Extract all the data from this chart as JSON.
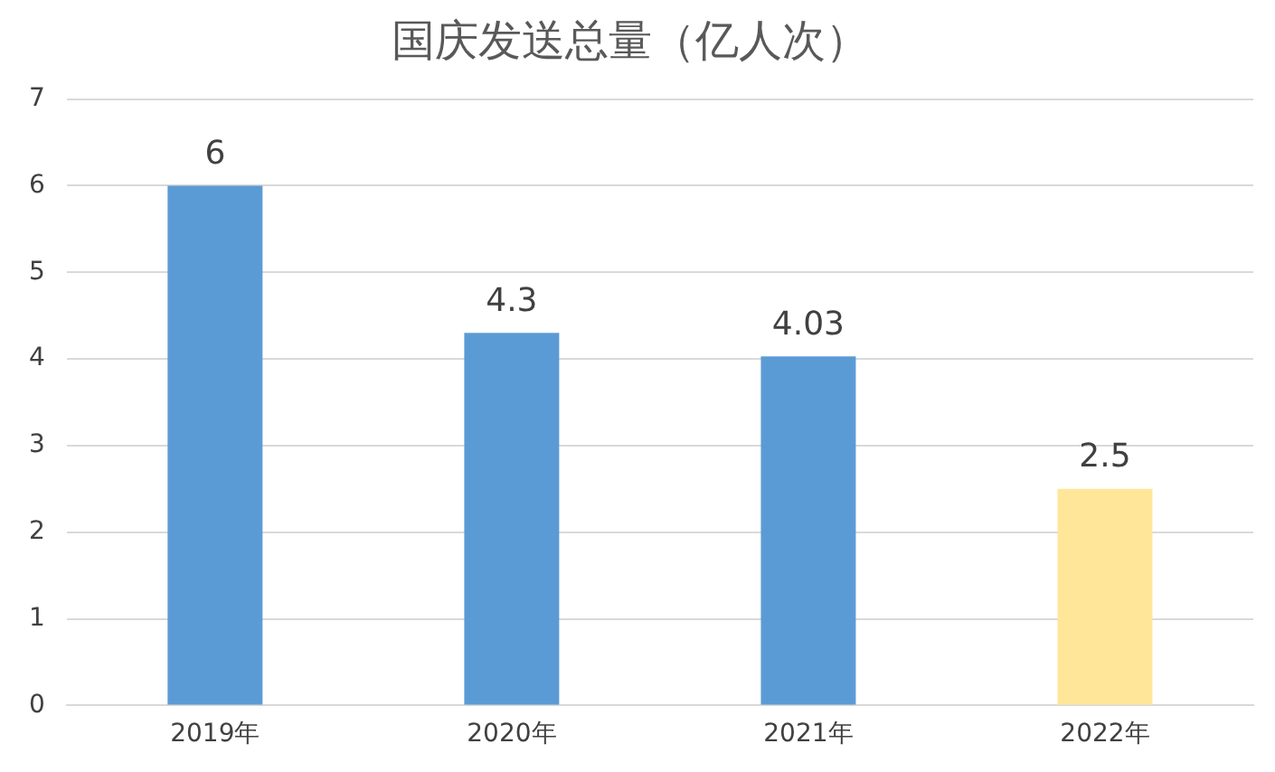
{
  "chart_data": {
    "type": "bar",
    "title": "国庆发送总量（亿人次）",
    "categories": [
      "2019年",
      "2020年",
      "2021年",
      "2022年"
    ],
    "values": [
      6,
      4.3,
      4.03,
      2.5
    ],
    "colors": [
      "#5b9bd5",
      "#5b9bd5",
      "#5b9bd5",
      "#ffe699"
    ],
    "ylim": [
      0,
      7
    ],
    "yticks": [
      0,
      1,
      2,
      3,
      4,
      5,
      6,
      7
    ],
    "grid": "y",
    "data_labels": true
  }
}
